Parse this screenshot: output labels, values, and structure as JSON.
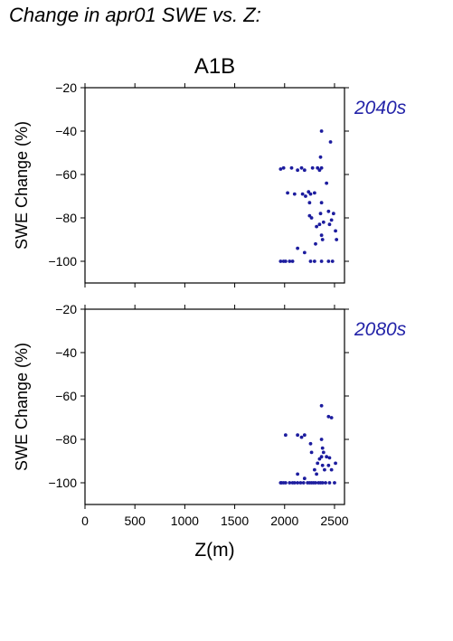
{
  "figure": {
    "title": "Change in apr01 SWE vs. Z:"
  },
  "colors": {
    "points": "#1c1c9e",
    "period_label": "#2323a8",
    "axis": "#000000"
  },
  "chart_data": [
    {
      "type": "scatter",
      "title": "A1B",
      "period": "2040s",
      "xlabel": "",
      "ylabel": "SWE Change (%)",
      "xlim": [
        0,
        2600
      ],
      "ylim": [
        -110,
        -20
      ],
      "yticks": [
        -20,
        -40,
        -60,
        -80,
        -100
      ],
      "xticks": [
        0,
        500,
        1000,
        1500,
        2000,
        2500
      ],
      "show_xtick_labels": false,
      "grid": false,
      "points": [
        [
          1960,
          -57.5
        ],
        [
          1990,
          -57
        ],
        [
          2070,
          -57
        ],
        [
          2130,
          -58
        ],
        [
          2170,
          -57
        ],
        [
          2200,
          -58
        ],
        [
          2280,
          -57
        ],
        [
          2330,
          -57
        ],
        [
          2350,
          -58
        ],
        [
          2370,
          -57
        ],
        [
          2370,
          -40
        ],
        [
          2460,
          -45
        ],
        [
          2360,
          -52
        ],
        [
          2420,
          -64
        ],
        [
          2030,
          -68.5
        ],
        [
          2100,
          -69
        ],
        [
          2180,
          -69
        ],
        [
          2210,
          -70
        ],
        [
          2240,
          -68
        ],
        [
          2260,
          -69
        ],
        [
          2300,
          -68.5
        ],
        [
          2250,
          -73
        ],
        [
          2370,
          -73
        ],
        [
          2250,
          -79
        ],
        [
          2270,
          -80
        ],
        [
          2360,
          -78
        ],
        [
          2440,
          -77
        ],
        [
          2490,
          -78
        ],
        [
          2320,
          -84
        ],
        [
          2350,
          -83
        ],
        [
          2390,
          -82
        ],
        [
          2450,
          -83
        ],
        [
          2470,
          -81
        ],
        [
          2370,
          -88
        ],
        [
          2380,
          -90
        ],
        [
          2510,
          -86
        ],
        [
          2520,
          -90
        ],
        [
          2310,
          -92
        ],
        [
          2130,
          -94
        ],
        [
          2200,
          -96
        ],
        [
          1960,
          -100
        ],
        [
          1990,
          -100
        ],
        [
          2010,
          -100
        ],
        [
          2050,
          -100
        ],
        [
          2080,
          -100
        ],
        [
          2260,
          -100
        ],
        [
          2300,
          -100
        ],
        [
          2370,
          -100
        ],
        [
          2440,
          -100
        ],
        [
          2480,
          -100
        ]
      ]
    },
    {
      "type": "scatter",
      "title": "",
      "period": "2080s",
      "xlabel": "Z(m)",
      "ylabel": "SWE Change (%)",
      "xlim": [
        0,
        2600
      ],
      "ylim": [
        -110,
        -20
      ],
      "yticks": [
        -20,
        -40,
        -60,
        -80,
        -100
      ],
      "xticks": [
        0,
        500,
        1000,
        1500,
        2000,
        2500
      ],
      "show_xtick_labels": true,
      "grid": false,
      "points": [
        [
          2370,
          -64.5
        ],
        [
          2440,
          -69.5
        ],
        [
          2470,
          -70
        ],
        [
          2010,
          -78
        ],
        [
          2130,
          -78
        ],
        [
          2170,
          -79
        ],
        [
          2200,
          -78
        ],
        [
          2260,
          -82
        ],
        [
          2370,
          -80
        ],
        [
          2380,
          -84
        ],
        [
          2390,
          -86
        ],
        [
          2270,
          -86
        ],
        [
          2370,
          -88
        ],
        [
          2420,
          -88
        ],
        [
          2450,
          -88.5
        ],
        [
          2510,
          -91
        ],
        [
          2350,
          -89
        ],
        [
          2330,
          -91
        ],
        [
          2380,
          -92
        ],
        [
          2400,
          -94
        ],
        [
          2440,
          -92
        ],
        [
          2470,
          -94
        ],
        [
          2300,
          -94
        ],
        [
          2130,
          -96
        ],
        [
          2200,
          -98
        ],
        [
          2320,
          -96
        ],
        [
          1960,
          -100
        ],
        [
          1970,
          -100
        ],
        [
          1990,
          -100
        ],
        [
          2010,
          -100
        ],
        [
          2050,
          -100
        ],
        [
          2080,
          -100
        ],
        [
          2100,
          -100
        ],
        [
          2130,
          -100
        ],
        [
          2160,
          -100
        ],
        [
          2190,
          -100
        ],
        [
          2230,
          -100
        ],
        [
          2250,
          -100
        ],
        [
          2270,
          -100
        ],
        [
          2290,
          -100
        ],
        [
          2310,
          -100
        ],
        [
          2340,
          -100
        ],
        [
          2360,
          -100
        ],
        [
          2380,
          -100
        ],
        [
          2410,
          -100
        ],
        [
          2450,
          -100
        ],
        [
          2500,
          -100
        ]
      ]
    }
  ]
}
